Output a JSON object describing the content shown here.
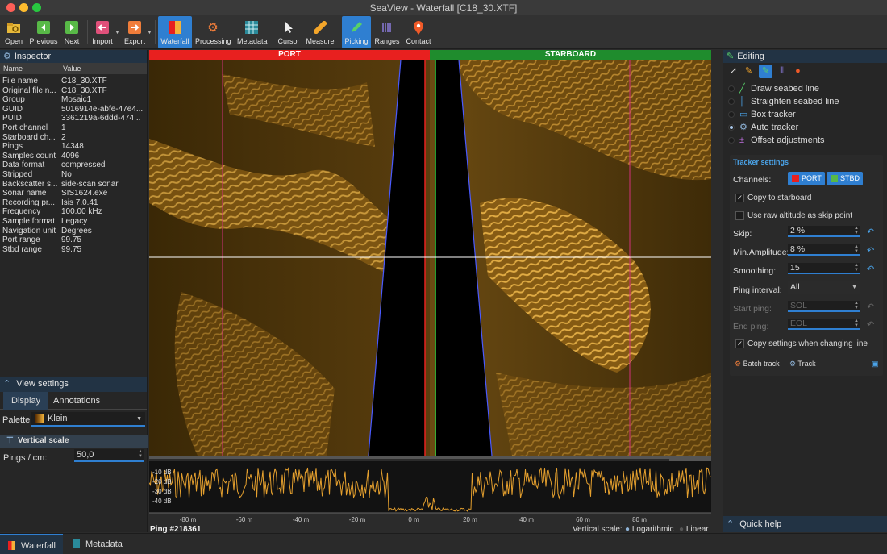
{
  "window": {
    "title": "SeaView - Waterfall [C18_30.XTF]"
  },
  "toolbar": {
    "open": "Open",
    "previous": "Previous",
    "next": "Next",
    "import": "Import",
    "export": "Export",
    "waterfall": "Waterfall",
    "processing": "Processing",
    "metadata": "Metadata",
    "cursor": "Cursor",
    "measure": "Measure",
    "picking": "Picking",
    "ranges": "Ranges",
    "contact": "Contact"
  },
  "inspector": {
    "title": "Inspector",
    "col_name": "Name",
    "col_value": "Value",
    "rows": [
      {
        "k": "File name",
        "v": "C18_30.XTF"
      },
      {
        "k": "Original file n...",
        "v": "C18_30.XTF"
      },
      {
        "k": "Group",
        "v": "Mosaic1"
      },
      {
        "k": "GUID",
        "v": "5016914e-abfe-47e4..."
      },
      {
        "k": "PUID",
        "v": "3361219a-6ddd-474..."
      },
      {
        "k": "Port channel",
        "v": "1"
      },
      {
        "k": "Starboard ch...",
        "v": "2"
      },
      {
        "k": "Pings",
        "v": "14348"
      },
      {
        "k": "Samples count",
        "v": "4096"
      },
      {
        "k": "Data format",
        "v": "compressed"
      },
      {
        "k": "Stripped",
        "v": "No"
      },
      {
        "k": "Backscatter s...",
        "v": "side-scan sonar"
      },
      {
        "k": "Sonar name",
        "v": "SIS1624.exe"
      },
      {
        "k": "Recording pr...",
        "v": "Isis 7.0.41"
      },
      {
        "k": "Frequency",
        "v": "100.00 kHz"
      },
      {
        "k": "Sample format",
        "v": "Legacy"
      },
      {
        "k": "Navigation unit",
        "v": "Degrees"
      },
      {
        "k": "Port range",
        "v": "99.75"
      },
      {
        "k": "Stbd range",
        "v": "99.75"
      }
    ]
  },
  "view_settings": {
    "title": "View settings",
    "tab_display": "Display",
    "tab_annotations": "Annotations",
    "palette_label": "Palette:",
    "palette_value": "Klein",
    "vertical_scale_title": "Vertical scale",
    "pings_label": "Pings / cm:",
    "pings_value": "50,0"
  },
  "sonar": {
    "port_label": "PORT",
    "starboard_label": "STARBOARD"
  },
  "profile": {
    "db_ticks": [
      "-10 dB",
      "-20 dB",
      "-30 dB",
      "-40 dB"
    ],
    "x_ticks": [
      "-80 m",
      "-60 m",
      "-40 m",
      "-20 m",
      "0 m",
      "20 m",
      "40 m",
      "60 m",
      "80 m"
    ],
    "ping_label": "Ping #218361",
    "vertical_scale_label": "Vertical scale:",
    "log_label": "Logarithmic",
    "linear_label": "Linear"
  },
  "editing": {
    "title": "Editing",
    "modes": [
      {
        "label": "Draw seabed line",
        "selected": false
      },
      {
        "label": "Straighten seabed line",
        "selected": false
      },
      {
        "label": "Box tracker",
        "selected": false
      },
      {
        "label": "Auto tracker",
        "selected": true
      },
      {
        "label": "Offset adjustments",
        "selected": false
      }
    ],
    "tracker": {
      "title": "Tracker settings",
      "channels_label": "Channels:",
      "port_btn": "PORT",
      "stbd_btn": "STBD",
      "copy_starboard": "Copy to starboard",
      "raw_altitude": "Use raw altitude as skip point",
      "skip_label": "Skip:",
      "skip_value": "2 %",
      "min_amp_label": "Min.Amplitude:",
      "min_amp_value": "8 %",
      "smoothing_label": "Smoothing:",
      "smoothing_value": "15",
      "ping_interval_label": "Ping interval:",
      "ping_interval_value": "All",
      "start_ping_label": "Start ping:",
      "start_ping_placeholder": "SOL",
      "end_ping_label": "End ping:",
      "end_ping_placeholder": "EOL",
      "copy_settings": "Copy settings when changing line",
      "batch_track": "Batch track",
      "track": "Track"
    },
    "quick_help": "Quick help"
  },
  "bottom_tabs": {
    "waterfall": "Waterfall",
    "metadata": "Metadata"
  },
  "colors": {
    "accent": "#2f7fd1",
    "port": "#e8201f",
    "starboard": "#1f8c2d",
    "sonar": "#d79a2a"
  }
}
